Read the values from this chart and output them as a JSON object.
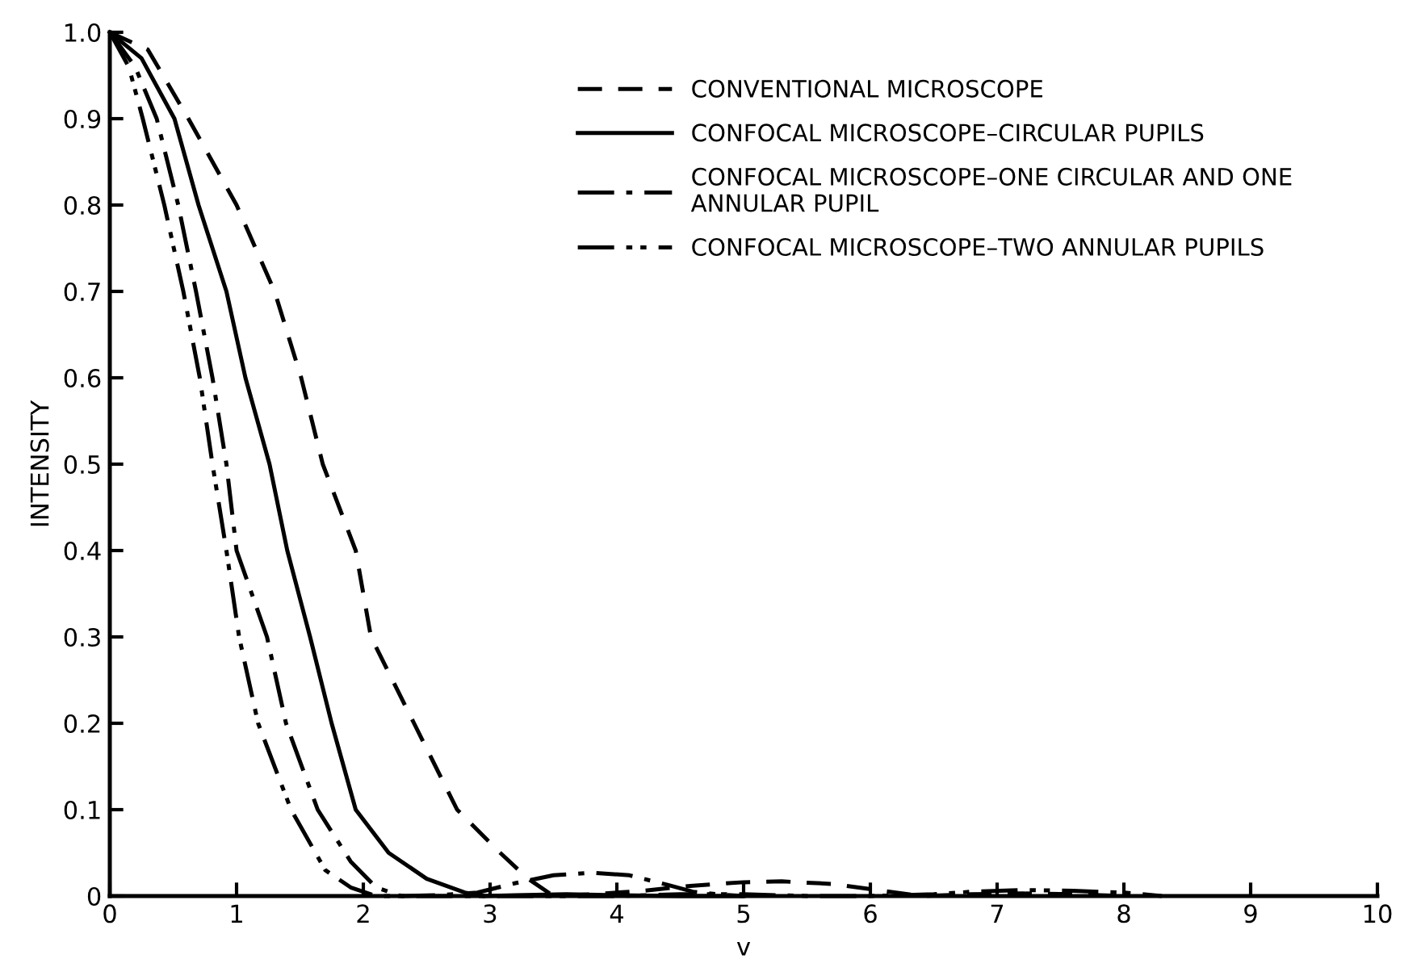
{
  "chart_data": {
    "type": "line",
    "xlabel": "v",
    "ylabel": "INTENSITY",
    "xlim": [
      0,
      10
    ],
    "ylim": [
      0,
      1.0
    ],
    "xticks": [
      0,
      1,
      2,
      3,
      4,
      5,
      6,
      7,
      8,
      9,
      10
    ],
    "yticks": [
      0,
      0.1,
      0.2,
      0.3,
      0.4,
      0.5,
      0.6,
      0.7,
      0.8,
      0.9,
      {
        "value": 1.0,
        "label": "1.0"
      }
    ],
    "legend": "top right",
    "grid": false,
    "marker": "none",
    "series": [
      {
        "name": "CONVENTIONAL MICROSCOPE",
        "color": "#000000",
        "line_style": "dashed",
        "x": [
          0,
          0.3,
          0.62,
          1.0,
          1.3,
          1.51,
          1.68,
          1.94,
          2.06,
          2.4,
          2.74,
          3.08,
          3.3,
          3.5,
          3.8,
          4.2,
          4.6,
          5.0,
          5.3,
          5.7,
          6.1,
          6.4,
          6.8,
          7.2,
          7.6,
          8.0
        ],
        "values": [
          1.0,
          0.98,
          0.9,
          0.8,
          0.7,
          0.6,
          0.5,
          0.4,
          0.3,
          0.2,
          0.1,
          0.05,
          0.02,
          0.0,
          0.002,
          0.006,
          0.012,
          0.016,
          0.017,
          0.014,
          0.006,
          0.0,
          0.002,
          0.003,
          0.002,
          0.0
        ]
      },
      {
        "name": "CONFOCAL MICROSCOPE–CIRCULAR PUPILS",
        "color": "#000000",
        "line_style": "solid",
        "x": [
          0,
          0.25,
          0.51,
          0.7,
          0.92,
          1.07,
          1.26,
          1.4,
          1.58,
          1.75,
          1.94,
          2.2,
          2.5,
          2.8,
          2.95,
          3.2,
          3.6,
          4.0,
          4.5,
          5.0
        ],
        "values": [
          1.0,
          0.97,
          0.9,
          0.8,
          0.7,
          0.6,
          0.5,
          0.4,
          0.3,
          0.2,
          0.1,
          0.05,
          0.02,
          0.004,
          0.0,
          0.001,
          0.002,
          0.001,
          0.0,
          0.0
        ]
      },
      {
        "name": "CONFOCAL MICROSCOPE–ONE CIRCULAR AND ONE\nANNULAR PUPIL",
        "color": "#000000",
        "line_style": "dashdot",
        "x": [
          0,
          0.2,
          0.37,
          0.54,
          0.68,
          0.81,
          0.92,
          1.0,
          1.24,
          1.39,
          1.64,
          1.9,
          2.1,
          2.3,
          2.6,
          2.9,
          3.2,
          3.5,
          3.8,
          4.1,
          4.4,
          4.6,
          4.8,
          5.0
        ],
        "values": [
          1.0,
          0.96,
          0.9,
          0.8,
          0.7,
          0.6,
          0.5,
          0.4,
          0.3,
          0.2,
          0.1,
          0.04,
          0.01,
          0.0,
          0.001,
          0.004,
          0.015,
          0.024,
          0.027,
          0.024,
          0.013,
          0.005,
          0.002,
          0.0
        ]
      },
      {
        "name": "CONFOCAL MICROSCOPE–TWO ANNULAR PUPILS",
        "color": "#000000",
        "line_style": "dashdotdot",
        "x": [
          0,
          0.15,
          0.26,
          0.43,
          0.58,
          0.71,
          0.81,
          0.92,
          1.02,
          1.17,
          1.43,
          1.7,
          1.9,
          2.1,
          3.0,
          4.0,
          4.5,
          5.0,
          5.5,
          6.0,
          6.5,
          6.8,
          7.2,
          7.6,
          8.0,
          8.3
        ],
        "values": [
          1.0,
          0.96,
          0.9,
          0.8,
          0.7,
          0.6,
          0.5,
          0.4,
          0.3,
          0.2,
          0.1,
          0.03,
          0.01,
          0.0,
          0.0,
          0.0,
          0.002,
          0.002,
          0.0,
          0.0,
          0.002,
          0.005,
          0.007,
          0.006,
          0.004,
          0.0
        ]
      }
    ]
  }
}
